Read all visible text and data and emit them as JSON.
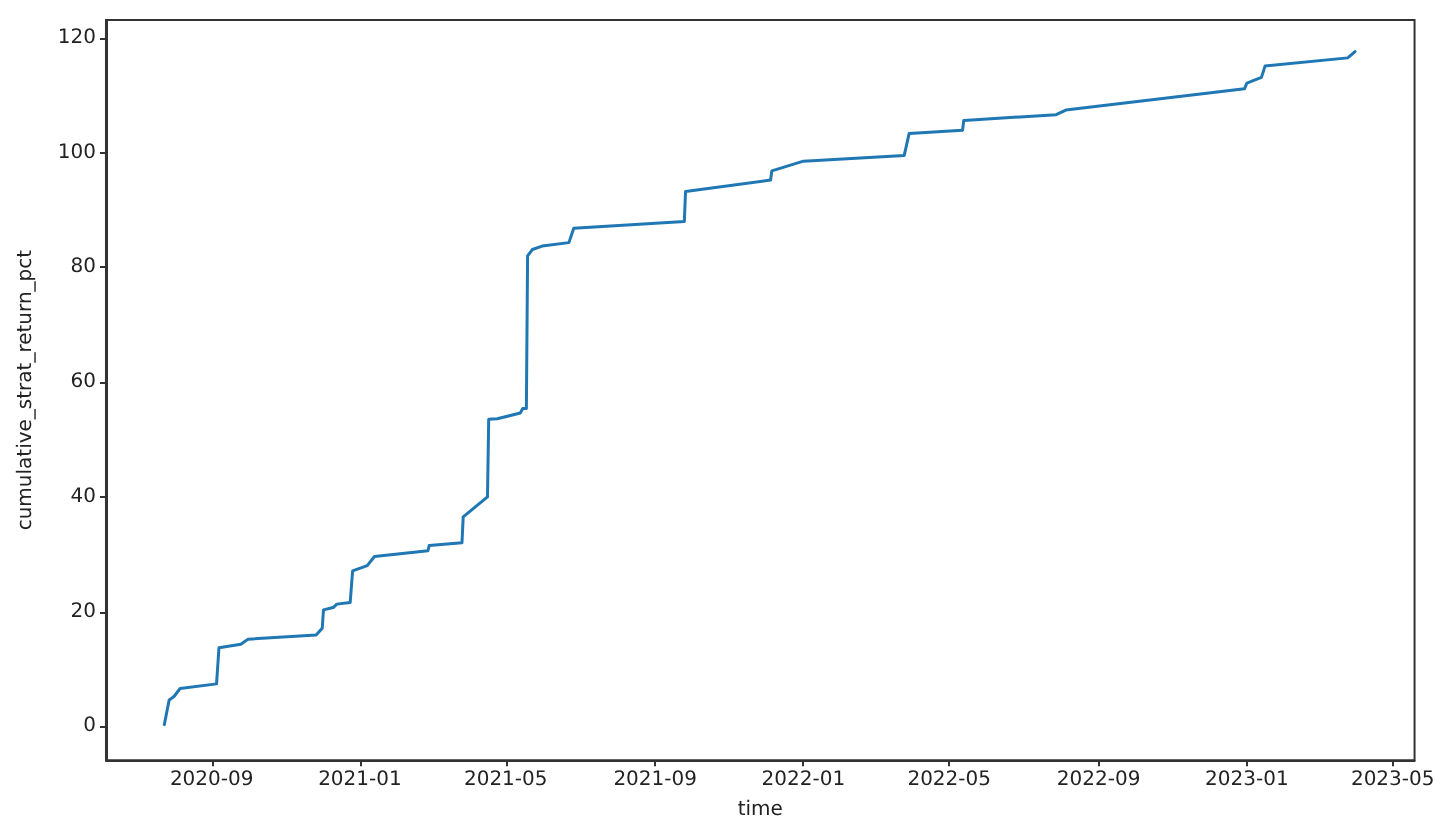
{
  "chart_data": {
    "type": "line",
    "xlabel": "time",
    "ylabel": "cumulative_strat_return_pct",
    "x": [
      "2020-07-24",
      "2020-07-28",
      "2020-08-01",
      "2020-08-06",
      "2020-09-05",
      "2020-09-07",
      "2020-09-25",
      "2020-10-01",
      "2020-11-26",
      "2020-12-01",
      "2020-12-02",
      "2020-12-10",
      "2020-12-13",
      "2020-12-24",
      "2020-12-26",
      "2021-01-07",
      "2021-01-13",
      "2021-02-26",
      "2021-02-27",
      "2021-03-26",
      "2021-03-27",
      "2021-04-16",
      "2021-04-17",
      "2021-04-24",
      "2021-05-13",
      "2021-05-15",
      "2021-05-18",
      "2021-05-19",
      "2021-05-23",
      "2021-05-31",
      "2021-06-22",
      "2021-06-26",
      "2021-09-25",
      "2021-09-26",
      "2021-12-05",
      "2021-12-06",
      "2022-01-01",
      "2022-03-25",
      "2022-03-29",
      "2022-05-12",
      "2022-05-13",
      "2022-07-28",
      "2022-08-05",
      "2022-12-30",
      "2023-01-01",
      "2023-01-13",
      "2023-01-16",
      "2023-03-25",
      "2023-03-31"
    ],
    "series": [
      {
        "color": "#1f77b4",
        "values": [
          0.3,
          4.6,
          5.2,
          6.6,
          7.4,
          13.7,
          14.3,
          15.2,
          15.9,
          17.1,
          20.3,
          20.7,
          21.3,
          21.6,
          27.1,
          28,
          29.6,
          30.6,
          31.5,
          32,
          36.5,
          40,
          53.5,
          53.6,
          54.6,
          55.4,
          55.4,
          82,
          83.1,
          83.7,
          84.3,
          86.8,
          88,
          93.2,
          95.2,
          96.8,
          98.5,
          99.5,
          103.3,
          103.9,
          105.6,
          106.6,
          107.4,
          111.1,
          112.1,
          113.1,
          115.1,
          116.5,
          117.6
        ]
      }
    ],
    "xlim": [
      "2020-06-06",
      "2023-05-19"
    ],
    "xticks": [
      {
        "value": "2020-09",
        "label": "2020-09"
      },
      {
        "value": "2021-01",
        "label": "2021-01"
      },
      {
        "value": "2021-05",
        "label": "2021-05"
      },
      {
        "value": "2021-09",
        "label": "2021-09"
      },
      {
        "value": "2022-01",
        "label": "2022-01"
      },
      {
        "value": "2022-05",
        "label": "2022-05"
      },
      {
        "value": "2022-09",
        "label": "2022-09"
      },
      {
        "value": "2023-01",
        "label": "2023-01"
      },
      {
        "value": "2023-05",
        "label": "2023-05"
      }
    ],
    "ylim": [
      -5.9,
      123.1
    ],
    "yticks": [
      0,
      20,
      40,
      60,
      80,
      100,
      120
    ],
    "grid": false,
    "marker": "none",
    "line_style": "solid"
  }
}
